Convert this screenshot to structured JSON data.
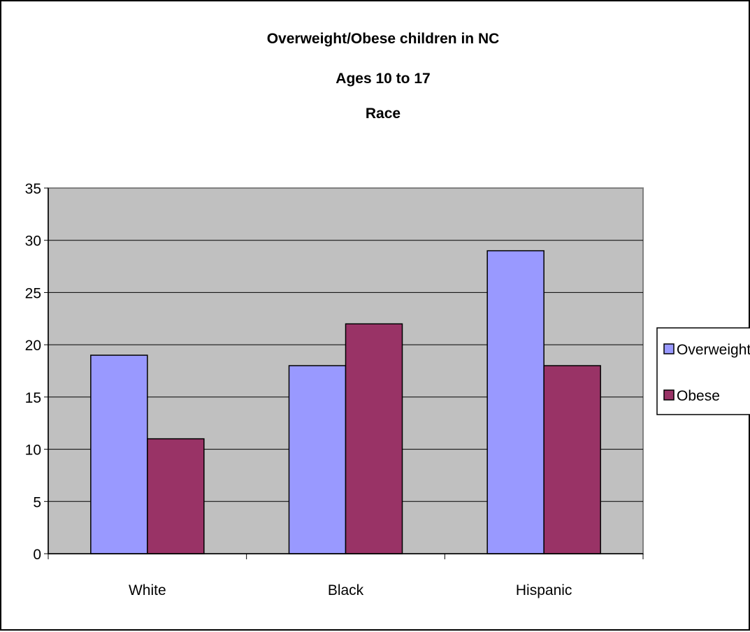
{
  "chart_data": {
    "type": "bar",
    "title_lines": [
      "Overweight/Obese children in NC",
      "Ages 10 to 17",
      "Race"
    ],
    "categories": [
      "White",
      "Black",
      "Hispanic"
    ],
    "series": [
      {
        "name": "Overweight",
        "values": [
          19,
          18,
          29
        ],
        "color": "#9999ff"
      },
      {
        "name": "Obese",
        "values": [
          11,
          22,
          18
        ],
        "color": "#993366"
      }
    ],
    "xlabel": "",
    "ylabel": "",
    "ylim": [
      0,
      35
    ],
    "yticks": [
      0,
      5,
      10,
      15,
      20,
      25,
      30,
      35
    ],
    "grid": true,
    "legend_position": "right",
    "plot_background": "#c0c0c0",
    "gridline_color": "#000000"
  }
}
